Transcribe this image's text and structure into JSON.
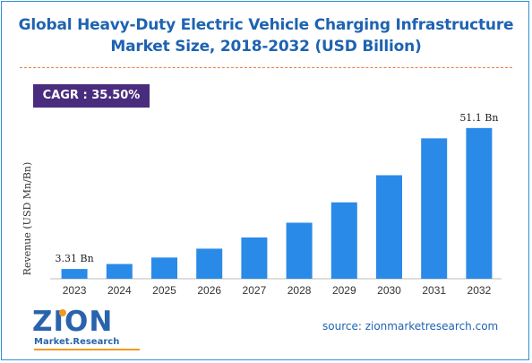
{
  "title_line1": "Global Heavy-Duty Electric Vehicle Charging Infrastructure",
  "title_line2": "Market Size, 2018-2032 (USD Billion)",
  "cagr_label": "CAGR : 35.50%",
  "source": "source: zionmarketresearch.com",
  "logo": {
    "word": "ZION",
    "sub": "Market.Research"
  },
  "colors": {
    "bar": "#2a8ae8",
    "title": "#1e63b0",
    "cagr_bg": "#4a2c7e",
    "divider": "#e8803a"
  },
  "chart_data": {
    "type": "bar",
    "categories": [
      "2023",
      "2024",
      "2025",
      "2026",
      "2027",
      "2028",
      "2029",
      "2030",
      "2031",
      "2032"
    ],
    "values": [
      3.31,
      5.0,
      7.2,
      10.2,
      14.0,
      19.0,
      25.9,
      35.1,
      47.6,
      51.1
    ],
    "data_labels": [
      {
        "index": 0,
        "text": "3.31 Bn"
      },
      {
        "index": 9,
        "text": "51.1 Bn"
      }
    ],
    "ylabel": "Revenue (USD Mn/Bn)",
    "xlabel": "",
    "ylim": [
      0,
      55
    ],
    "grid": false,
    "y_ticks_shown": false
  }
}
